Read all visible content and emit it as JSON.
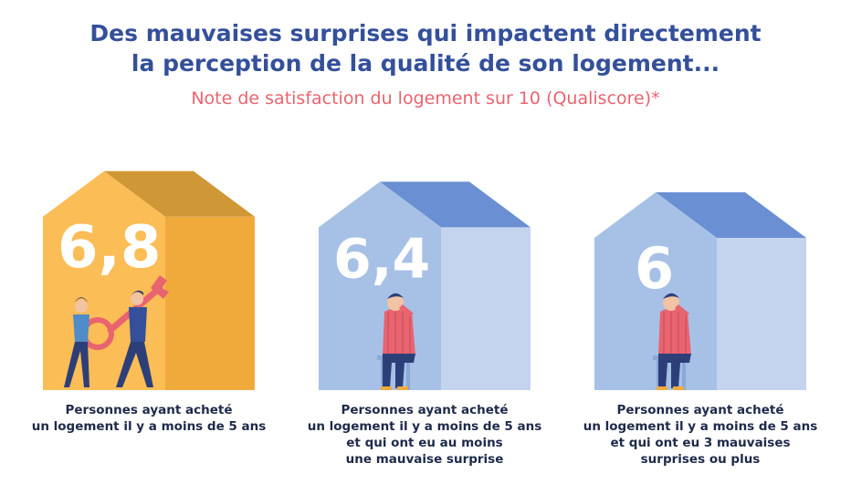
{
  "header": {
    "title_line1": "Des mauvaises surprises qui impactent directement",
    "title_line2": "la perception de la qualité de son logement...",
    "subtitle": "Note de satisfaction du logement sur 10 (Qualiscore)*"
  },
  "colors": {
    "title": "#34509b",
    "subtitle": "#e8646f",
    "caption": "#1e2a4a",
    "house1_front": "#fbbd55",
    "house1_side": "#f0aa3c",
    "house1_roof": "#cf9736",
    "house2_front": "#a7c1e6",
    "house2_side": "#c4d4ee",
    "house2_roof": "#6a8fd2",
    "value_text": "#ffffff"
  },
  "chart_data": {
    "type": "bar",
    "categories": [
      "Personnes ayant acheté un logement il y a moins de 5 ans",
      "Personnes ayant acheté un logement il y a moins de 5 ans et qui ont eu au moins une mauvaise surprise",
      "Personnes ayant acheté un logement il y a moins de 5 ans et qui ont eu 3 mauvaises surprises ou plus"
    ],
    "values": [
      6.8,
      6.4,
      6
    ],
    "value_labels": [
      "6,8",
      "6,4",
      "6"
    ],
    "caption_lines": [
      [
        "Personnes ayant acheté",
        "un logement il y a moins de 5 ans"
      ],
      [
        "Personnes ayant acheté",
        "un logement il y a moins de 5 ans",
        "et qui ont eu au moins",
        "une mauvaise surprise"
      ],
      [
        "Personnes ayant acheté",
        "un logement il y a moins de 5 ans",
        "et qui ont eu 3 mauvaises",
        "surprises ou plus"
      ]
    ],
    "title": "Des mauvaises surprises qui impactent directement la perception de la qualité de son logement...",
    "subtitle": "Note de satisfaction du logement sur 10 (Qualiscore)*",
    "illustrations": [
      "people-carrying-key",
      "worried-man-sitting",
      "worried-man-sitting"
    ]
  }
}
